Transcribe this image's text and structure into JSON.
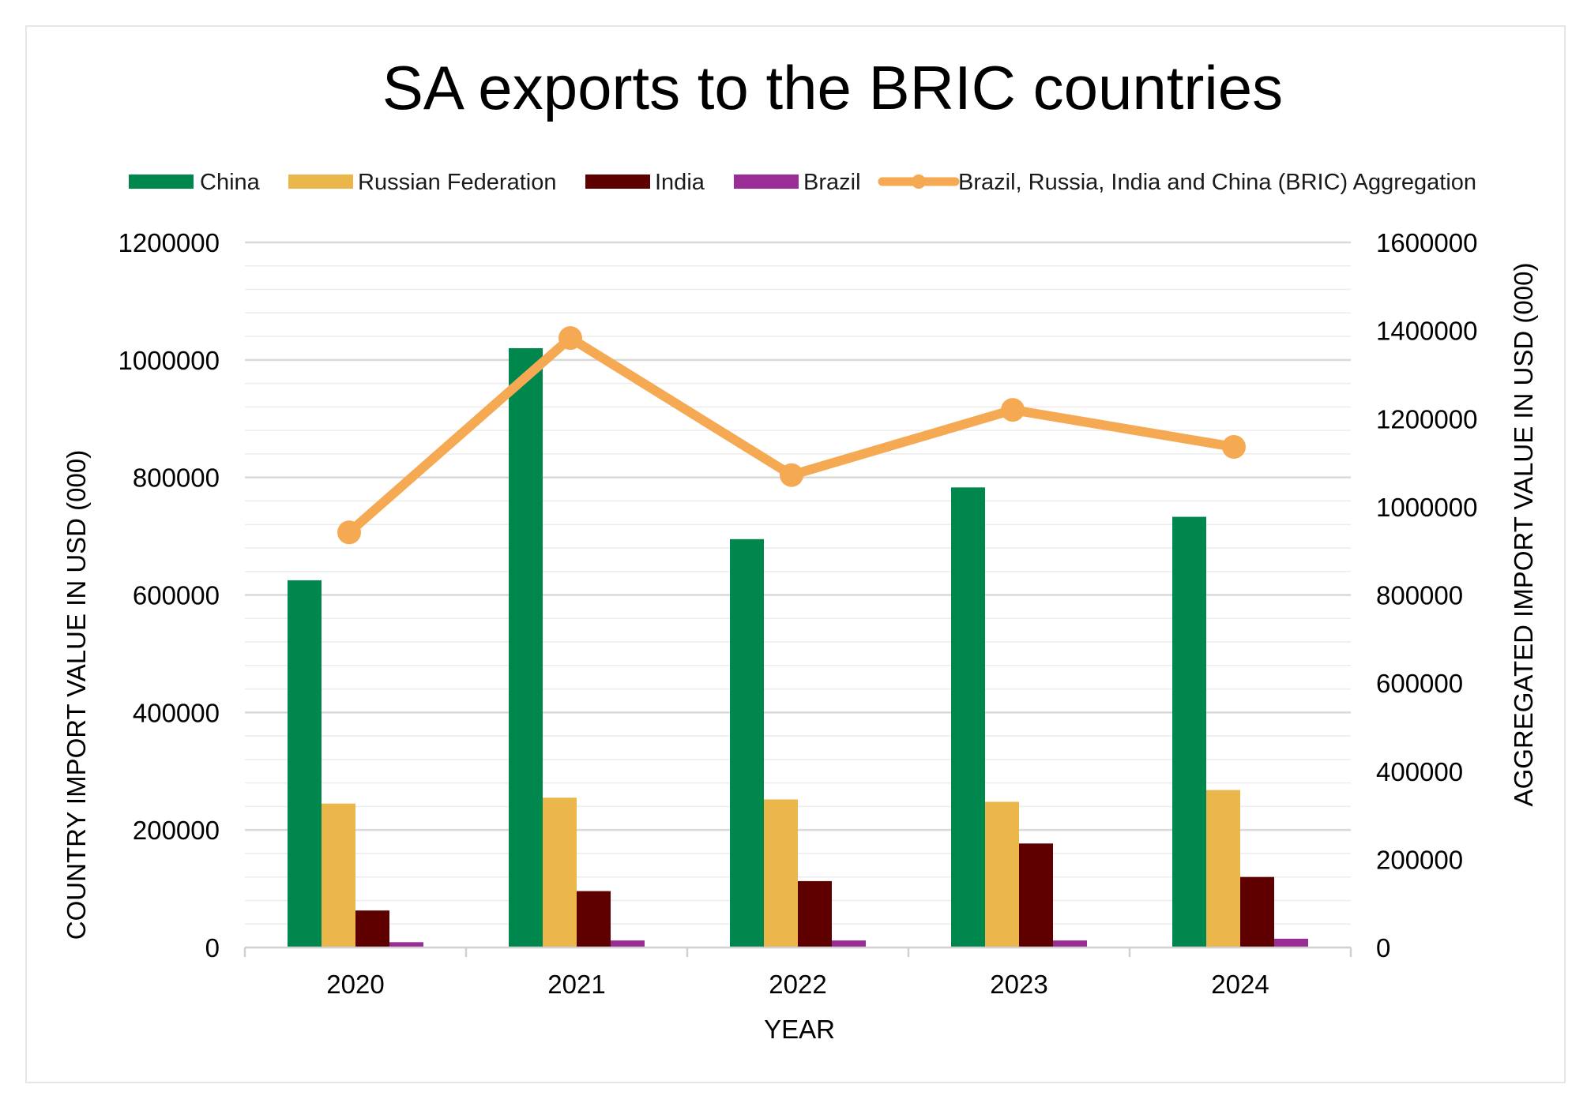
{
  "chart_data": {
    "type": "bar",
    "title": "SA exports to the BRIC countries",
    "xlabel": "YEAR",
    "ylabel": "COUNTRY IMPORT VALUE IN USD (000)",
    "y2label": "AGGREGATED  IMPORT VALUE IN USD  (000)",
    "categories": [
      "2020",
      "2021",
      "2022",
      "2023",
      "2024"
    ],
    "ylim": [
      0,
      1200000
    ],
    "y2lim": [
      0,
      1600000
    ],
    "yticks": [
      "0",
      "200000",
      "400000",
      "600000",
      "800000",
      "1000000",
      "1200000"
    ],
    "y2ticks": [
      "0",
      "200000",
      "400000",
      "600000",
      "800000",
      "1000000",
      "1200000",
      "1400000",
      "1600000"
    ],
    "grid": true,
    "legend_position": "top",
    "series": [
      {
        "name": "China",
        "type": "bar",
        "axis": "left",
        "color": "#00874D",
        "values": [
          625000,
          1020000,
          695000,
          783000,
          733000
        ]
      },
      {
        "name": "Russian Federation",
        "type": "bar",
        "axis": "left",
        "color": "#EBB74B",
        "values": [
          245000,
          255000,
          252000,
          248000,
          268000
        ]
      },
      {
        "name": "India",
        "type": "bar",
        "axis": "left",
        "color": "#5E0000",
        "values": [
          63000,
          96000,
          113000,
          177000,
          120000
        ]
      },
      {
        "name": "Brazil",
        "type": "bar",
        "axis": "left",
        "color": "#9B2E96",
        "values": [
          9000,
          12000,
          12000,
          12000,
          15000
        ]
      },
      {
        "name": "Brazil, Russia, India and China (BRIC) Aggregation",
        "type": "line",
        "axis": "right",
        "color": "#F5A953",
        "values": [
          942000,
          1383000,
          1072000,
          1220000,
          1136000
        ]
      }
    ]
  }
}
